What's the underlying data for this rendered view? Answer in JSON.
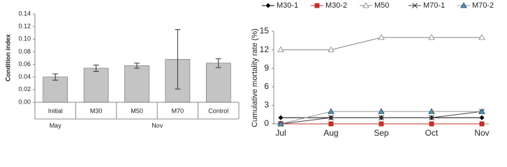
{
  "chart_data": [
    {
      "type": "bar",
      "ylabel": "Condition index",
      "categories": [
        "Initial",
        "M30",
        "M50",
        "M70",
        "Control"
      ],
      "groups": [
        "May",
        "Nov"
      ],
      "values": [
        0.04,
        0.054,
        0.058,
        0.068,
        0.062
      ],
      "errors": [
        0.005,
        0.005,
        0.004,
        0.047,
        0.007
      ],
      "color": "#c4c4c4",
      "ylim": [
        0,
        0.14
      ],
      "yticks": [
        {
          "value": 0,
          "label": "0.00"
        },
        {
          "value": 0.02,
          "label": "0.02"
        },
        {
          "value": 0.04,
          "label": "0.04"
        },
        {
          "value": 0.06,
          "label": "0.06"
        },
        {
          "value": 0.08,
          "label": "0.08"
        },
        {
          "value": 0.1,
          "label": "0.10"
        },
        {
          "value": 0.12,
          "label": "0.12"
        },
        {
          "value": 0.14,
          "label": "0.14"
        }
      ]
    },
    {
      "type": "line",
      "ylabel": "Cumulative mortality rate (%)",
      "categories": [
        "Jul",
        "Aug",
        "Sep",
        "Oct",
        "Nov"
      ],
      "ylim": [
        0,
        15
      ],
      "yticks": [
        0,
        3,
        6,
        9,
        12,
        15
      ],
      "series": [
        {
          "name": "M30-1",
          "color": "#000000",
          "marker": "diamond",
          "values": [
            1,
            1,
            1,
            1,
            1
          ]
        },
        {
          "name": "M30-2",
          "color": "#c0302a",
          "marker": "square",
          "values": [
            0,
            0,
            0,
            0,
            0
          ]
        },
        {
          "name": "M50",
          "color": "#808080",
          "marker": "triangle-open",
          "values": [
            12,
            12,
            14,
            14,
            14
          ]
        },
        {
          "name": "M70-1",
          "color": "#404040",
          "marker": "x",
          "values": [
            0,
            1,
            1,
            1,
            2
          ]
        },
        {
          "name": "M70-2",
          "color": "#3fa0c8",
          "marker": "triangle",
          "values": [
            0,
            2,
            2,
            2,
            2
          ]
        }
      ]
    }
  ]
}
